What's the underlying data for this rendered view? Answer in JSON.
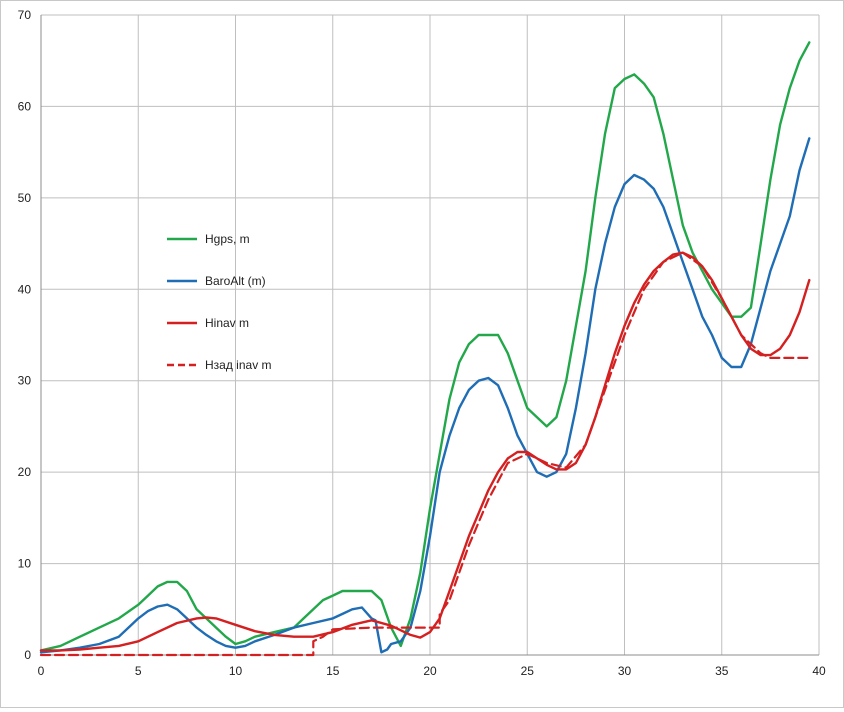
{
  "chart_data": {
    "type": "line",
    "title": "",
    "xlabel": "",
    "ylabel": "",
    "xlim": [
      0,
      40
    ],
    "ylim": [
      0,
      70
    ],
    "x_ticks": [
      "0",
      "5",
      "10",
      "15",
      "20",
      "25",
      "30",
      "35",
      "40"
    ],
    "y_ticks": [
      "0",
      "10",
      "20",
      "30",
      "40",
      "50",
      "60",
      "70"
    ],
    "grid": true,
    "legend_position": "center-left",
    "series": [
      {
        "name": "Hgps, m",
        "color": "#22a84a",
        "dash": "solid",
        "points": [
          [
            0,
            0.5
          ],
          [
            1,
            1
          ],
          [
            2,
            2
          ],
          [
            3,
            3
          ],
          [
            4,
            4
          ],
          [
            5,
            5.5
          ],
          [
            5.5,
            6.5
          ],
          [
            6,
            7.5
          ],
          [
            6.5,
            8
          ],
          [
            7,
            8
          ],
          [
            7.5,
            7
          ],
          [
            8,
            5
          ],
          [
            8.5,
            4
          ],
          [
            9,
            3
          ],
          [
            9.5,
            2
          ],
          [
            10,
            1.2
          ],
          [
            10.5,
            1.5
          ],
          [
            11,
            2
          ],
          [
            12,
            2.5
          ],
          [
            13,
            3
          ],
          [
            13.5,
            4
          ],
          [
            14,
            5
          ],
          [
            14.5,
            6
          ],
          [
            15,
            6.5
          ],
          [
            15.5,
            7
          ],
          [
            16,
            7
          ],
          [
            16.5,
            7
          ],
          [
            17,
            7
          ],
          [
            17.5,
            6
          ],
          [
            18,
            3
          ],
          [
            18.5,
            1
          ],
          [
            19,
            4
          ],
          [
            19.5,
            9
          ],
          [
            20,
            16
          ],
          [
            20.5,
            22
          ],
          [
            21,
            28
          ],
          [
            21.5,
            32
          ],
          [
            22,
            34
          ],
          [
            22.5,
            35
          ],
          [
            23,
            35
          ],
          [
            23.5,
            35
          ],
          [
            24,
            33
          ],
          [
            24.5,
            30
          ],
          [
            25,
            27
          ],
          [
            25.5,
            26
          ],
          [
            26,
            25
          ],
          [
            26.5,
            26
          ],
          [
            27,
            30
          ],
          [
            27.5,
            36
          ],
          [
            28,
            42
          ],
          [
            28.5,
            50
          ],
          [
            29,
            57
          ],
          [
            29.5,
            62
          ],
          [
            30,
            63
          ],
          [
            30.5,
            63.5
          ],
          [
            31,
            62.5
          ],
          [
            31.5,
            61
          ],
          [
            32,
            57
          ],
          [
            32.5,
            52
          ],
          [
            33,
            47
          ],
          [
            33.5,
            44
          ],
          [
            34,
            42
          ],
          [
            34.5,
            40
          ],
          [
            35,
            38.5
          ],
          [
            35.5,
            37
          ],
          [
            36,
            37
          ],
          [
            36.5,
            38
          ],
          [
            37,
            45
          ],
          [
            37.5,
            52
          ],
          [
            38,
            58
          ],
          [
            38.5,
            62
          ],
          [
            39,
            65
          ],
          [
            39.5,
            67
          ]
        ]
      },
      {
        "name": "BaroAlt (m)",
        "color": "#1f6db5",
        "dash": "solid",
        "points": [
          [
            0,
            0.3
          ],
          [
            1,
            0.5
          ],
          [
            2,
            0.8
          ],
          [
            3,
            1.2
          ],
          [
            4,
            2
          ],
          [
            4.5,
            3
          ],
          [
            5,
            4
          ],
          [
            5.5,
            4.8
          ],
          [
            6,
            5.3
          ],
          [
            6.5,
            5.5
          ],
          [
            7,
            5
          ],
          [
            7.5,
            4
          ],
          [
            8,
            3
          ],
          [
            8.5,
            2.2
          ],
          [
            9,
            1.5
          ],
          [
            9.5,
            1
          ],
          [
            10,
            0.8
          ],
          [
            10.5,
            1
          ],
          [
            11,
            1.5
          ],
          [
            12,
            2.2
          ],
          [
            13,
            3
          ],
          [
            14,
            3.5
          ],
          [
            15,
            4
          ],
          [
            15.5,
            4.5
          ],
          [
            16,
            5
          ],
          [
            16.5,
            5.2
          ],
          [
            17,
            4
          ],
          [
            17.2,
            3.8
          ],
          [
            17.5,
            0.3
          ],
          [
            17.8,
            0.6
          ],
          [
            18,
            1.2
          ],
          [
            18.5,
            1.5
          ],
          [
            19,
            3
          ],
          [
            19.5,
            7
          ],
          [
            20,
            13
          ],
          [
            20.5,
            20
          ],
          [
            21,
            24
          ],
          [
            21.5,
            27
          ],
          [
            22,
            29
          ],
          [
            22.5,
            30
          ],
          [
            23,
            30.3
          ],
          [
            23.5,
            29.5
          ],
          [
            24,
            27
          ],
          [
            24.5,
            24
          ],
          [
            25,
            22
          ],
          [
            25.5,
            20
          ],
          [
            26,
            19.5
          ],
          [
            26.5,
            20
          ],
          [
            27,
            22
          ],
          [
            27.5,
            27
          ],
          [
            28,
            33
          ],
          [
            28.5,
            40
          ],
          [
            29,
            45
          ],
          [
            29.5,
            49
          ],
          [
            30,
            51.5
          ],
          [
            30.5,
            52.5
          ],
          [
            31,
            52
          ],
          [
            31.5,
            51
          ],
          [
            32,
            49
          ],
          [
            32.5,
            46
          ],
          [
            33,
            43
          ],
          [
            33.5,
            40
          ],
          [
            34,
            37
          ],
          [
            34.5,
            35
          ],
          [
            35,
            32.5
          ],
          [
            35.5,
            31.5
          ],
          [
            36,
            31.5
          ],
          [
            36.5,
            34
          ],
          [
            37,
            38
          ],
          [
            37.5,
            42
          ],
          [
            38,
            45
          ],
          [
            38.5,
            48
          ],
          [
            39,
            53
          ],
          [
            39.5,
            56.5
          ]
        ]
      },
      {
        "name": "Hinav m",
        "color": "#d42020",
        "dash": "solid",
        "points": [
          [
            0,
            0.5
          ],
          [
            1,
            0.5
          ],
          [
            2,
            0.6
          ],
          [
            3,
            0.8
          ],
          [
            4,
            1
          ],
          [
            5,
            1.5
          ],
          [
            6,
            2.5
          ],
          [
            7,
            3.5
          ],
          [
            8,
            4
          ],
          [
            8.5,
            4.1
          ],
          [
            9,
            4
          ],
          [
            10,
            3.3
          ],
          [
            11,
            2.6
          ],
          [
            12,
            2.2
          ],
          [
            13,
            2
          ],
          [
            14,
            2
          ],
          [
            15,
            2.5
          ],
          [
            16,
            3.3
          ],
          [
            17,
            3.8
          ],
          [
            18,
            3.2
          ],
          [
            19,
            2.2
          ],
          [
            19.5,
            1.9
          ],
          [
            20,
            2.5
          ],
          [
            20.5,
            4
          ],
          [
            21,
            7
          ],
          [
            21.5,
            10
          ],
          [
            22,
            13
          ],
          [
            22.5,
            15.5
          ],
          [
            23,
            18
          ],
          [
            23.5,
            20
          ],
          [
            24,
            21.5
          ],
          [
            24.5,
            22.2
          ],
          [
            25,
            22.2
          ],
          [
            25.5,
            21.5
          ],
          [
            26,
            20.8
          ],
          [
            26.5,
            20.3
          ],
          [
            27,
            20.3
          ],
          [
            27.5,
            21
          ],
          [
            28,
            23
          ],
          [
            28.5,
            26
          ],
          [
            29,
            29.5
          ],
          [
            29.5,
            33
          ],
          [
            30,
            36
          ],
          [
            30.5,
            38.5
          ],
          [
            31,
            40.5
          ],
          [
            31.5,
            42
          ],
          [
            32,
            43
          ],
          [
            32.5,
            43.8
          ],
          [
            33,
            44
          ],
          [
            33.5,
            43.5
          ],
          [
            34,
            42.5
          ],
          [
            34.5,
            41
          ],
          [
            35,
            39
          ],
          [
            35.5,
            37
          ],
          [
            36,
            35
          ],
          [
            36.5,
            33.5
          ],
          [
            37,
            32.8
          ],
          [
            37.5,
            32.8
          ],
          [
            38,
            33.5
          ],
          [
            38.5,
            35
          ],
          [
            39,
            37.5
          ],
          [
            39.5,
            41
          ]
        ]
      },
      {
        "name": "Нзад inav m",
        "color": "#d42020",
        "dash": "dashed",
        "points": [
          [
            0,
            0
          ],
          [
            14,
            0
          ],
          [
            14,
            1.5
          ],
          [
            14.5,
            2
          ],
          [
            15,
            2.8
          ],
          [
            17,
            3
          ],
          [
            18,
            3
          ],
          [
            19,
            3
          ],
          [
            20,
            3
          ],
          [
            20.5,
            3
          ],
          [
            20.5,
            4.5
          ],
          [
            21,
            6
          ],
          [
            22,
            12
          ],
          [
            23,
            17
          ],
          [
            24,
            21
          ],
          [
            25,
            22
          ],
          [
            26,
            21
          ],
          [
            27,
            20.5
          ],
          [
            28,
            23
          ],
          [
            29,
            29
          ],
          [
            30,
            35
          ],
          [
            31,
            40
          ],
          [
            32,
            43
          ],
          [
            33,
            44
          ],
          [
            34,
            42.5
          ],
          [
            35,
            39
          ],
          [
            36,
            35
          ],
          [
            37,
            33
          ],
          [
            37.5,
            32.5
          ],
          [
            39.5,
            32.5
          ]
        ]
      }
    ]
  }
}
